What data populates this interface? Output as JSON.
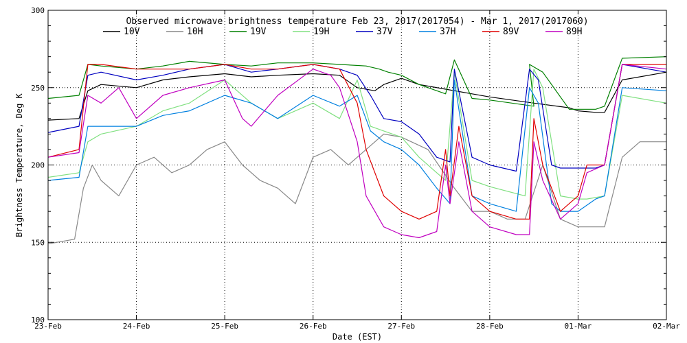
{
  "chart_data": {
    "type": "line",
    "title": "Observed microwave brightness temperature Feb 23, 2017(2017054) - Mar  1, 2017(2017060)",
    "xlabel": "Date (EST)",
    "ylabel": "Brightness Temperature, Deg K",
    "ylim": [
      100,
      300
    ],
    "xlim": [
      0,
      7
    ],
    "grid": true,
    "legend_position": "top",
    "x_tick_labels": [
      "23-Feb",
      "24-Feb",
      "25-Feb",
      "26-Feb",
      "27-Feb",
      "28-Feb",
      "01-Mar",
      "02-Mar"
    ],
    "y_tick_labels": [
      "100",
      "150",
      "200",
      "250",
      "300"
    ],
    "series": [
      {
        "name": "10V",
        "color": "#000000",
        "x": [
          0,
          0.35,
          0.45,
          0.6,
          1.0,
          1.3,
          1.6,
          2.0,
          2.3,
          2.6,
          3.0,
          3.3,
          3.5,
          3.7,
          3.8,
          4.0,
          4.2,
          4.5,
          4.8,
          5.0,
          5.5,
          5.9,
          6.0,
          6.2,
          6.3,
          6.5,
          7.0
        ],
        "y": [
          229,
          230,
          248,
          252,
          250,
          255,
          257,
          259,
          257,
          258,
          259,
          258,
          250,
          248,
          252,
          256,
          252,
          249,
          246,
          244,
          240,
          237,
          235,
          234,
          234,
          255,
          260
        ]
      },
      {
        "name": "10H",
        "color": "#888888",
        "x": [
          0,
          0.3,
          0.4,
          0.5,
          0.6,
          0.8,
          1.0,
          1.2,
          1.4,
          1.6,
          1.8,
          2.0,
          2.2,
          2.4,
          2.6,
          2.8,
          3.0,
          3.2,
          3.4,
          3.6,
          3.8,
          4.0,
          4.3,
          4.6,
          4.8,
          5.0,
          5.2,
          5.4,
          5.6,
          5.8,
          6.0,
          6.1,
          6.2,
          6.3,
          6.5,
          6.7,
          7.0
        ],
        "y": [
          149,
          152,
          185,
          200,
          190,
          180,
          200,
          205,
          195,
          200,
          210,
          215,
          200,
          190,
          185,
          175,
          205,
          210,
          200,
          210,
          220,
          218,
          210,
          185,
          170,
          170,
          165,
          165,
          200,
          165,
          160,
          160,
          160,
          160,
          205,
          215,
          215
        ]
      },
      {
        "name": "19V",
        "color": "#008000",
        "x": [
          0,
          0.35,
          0.45,
          0.6,
          1.0,
          1.3,
          1.6,
          2.0,
          2.3,
          2.6,
          3.0,
          3.3,
          3.6,
          3.75,
          3.85,
          4.0,
          4.2,
          4.5,
          4.6,
          4.8,
          5.0,
          5.5,
          5.45,
          5.6,
          5.9,
          6.0,
          6.2,
          6.3,
          6.5,
          7.0
        ],
        "y": [
          243,
          245,
          265,
          264,
          262,
          264,
          267,
          265,
          264,
          266,
          266,
          265,
          264,
          262,
          260,
          258,
          252,
          246,
          268,
          243,
          242,
          238,
          265,
          260,
          236,
          236,
          236,
          238,
          269,
          270
        ]
      },
      {
        "name": "19H",
        "color": "#80e080",
        "x": [
          0,
          0.35,
          0.45,
          0.6,
          1.0,
          1.3,
          1.6,
          2.0,
          2.3,
          2.6,
          3.0,
          3.3,
          3.5,
          3.65,
          3.8,
          4.0,
          4.2,
          4.4,
          4.5,
          4.6,
          4.8,
          5.0,
          5.4,
          5.5,
          5.6,
          5.8,
          6.0,
          6.1,
          6.3,
          6.5,
          7.0
        ],
        "y": [
          192,
          195,
          215,
          220,
          225,
          235,
          240,
          255,
          240,
          230,
          240,
          230,
          255,
          225,
          222,
          218,
          205,
          195,
          190,
          260,
          190,
          186,
          180,
          262,
          250,
          180,
          178,
          178,
          180,
          245,
          240
        ]
      },
      {
        "name": "37V",
        "color": "#0000c0",
        "x": [
          0,
          0.35,
          0.45,
          0.6,
          1.0,
          1.3,
          1.6,
          2.0,
          2.3,
          2.6,
          3.0,
          3.3,
          3.5,
          3.65,
          3.8,
          4.0,
          4.2,
          4.4,
          4.55,
          4.6,
          4.8,
          5.0,
          5.3,
          5.45,
          5.55,
          5.7,
          5.8,
          6.0,
          6.2,
          6.3,
          6.5,
          7.0
        ],
        "y": [
          221,
          225,
          258,
          260,
          255,
          258,
          262,
          265,
          260,
          262,
          265,
          262,
          258,
          245,
          230,
          228,
          220,
          205,
          202,
          262,
          205,
          200,
          196,
          262,
          255,
          200,
          198,
          198,
          198,
          200,
          265,
          260
        ]
      },
      {
        "name": "37H",
        "color": "#0080e0",
        "x": [
          0,
          0.35,
          0.45,
          0.6,
          1.0,
          1.3,
          1.6,
          2.0,
          2.3,
          2.6,
          3.0,
          3.3,
          3.5,
          3.65,
          3.8,
          4.0,
          4.2,
          4.4,
          4.55,
          4.6,
          4.8,
          5.0,
          5.3,
          5.45,
          5.55,
          5.7,
          5.8,
          6.0,
          6.2,
          6.3,
          6.5,
          7.0
        ],
        "y": [
          190,
          192,
          225,
          225,
          225,
          232,
          235,
          245,
          240,
          230,
          245,
          238,
          245,
          222,
          215,
          210,
          200,
          185,
          175,
          255,
          180,
          175,
          170,
          250,
          240,
          175,
          170,
          170,
          178,
          180,
          250,
          248
        ]
      },
      {
        "name": "89V",
        "color": "#e00000",
        "x": [
          0,
          0.35,
          0.45,
          0.6,
          1.0,
          1.3,
          1.6,
          2.0,
          2.3,
          2.6,
          3.0,
          3.3,
          3.5,
          3.6,
          3.7,
          3.8,
          4.0,
          4.2,
          4.4,
          4.5,
          4.55,
          4.65,
          4.8,
          5.0,
          5.3,
          5.45,
          5.5,
          5.6,
          5.8,
          6.0,
          6.1,
          6.3,
          6.5,
          7.0
        ],
        "y": [
          205,
          210,
          265,
          265,
          262,
          262,
          262,
          265,
          262,
          262,
          265,
          262,
          240,
          210,
          195,
          180,
          170,
          165,
          170,
          210,
          180,
          225,
          180,
          170,
          165,
          165,
          230,
          200,
          170,
          180,
          200,
          200,
          265,
          265
        ]
      },
      {
        "name": "89H",
        "color": "#c000c0",
        "x": [
          0,
          0.35,
          0.45,
          0.6,
          0.8,
          1.0,
          1.3,
          1.6,
          2.0,
          2.2,
          2.3,
          2.6,
          3.0,
          3.2,
          3.3,
          3.5,
          3.6,
          3.7,
          3.8,
          4.0,
          4.2,
          4.4,
          4.5,
          4.55,
          4.65,
          4.8,
          5.0,
          5.3,
          5.45,
          5.5,
          5.6,
          5.8,
          6.0,
          6.1,
          6.3,
          6.5,
          7.0
        ],
        "y": [
          205,
          208,
          245,
          240,
          250,
          230,
          245,
          250,
          255,
          230,
          225,
          245,
          262,
          258,
          250,
          215,
          180,
          170,
          160,
          155,
          153,
          157,
          200,
          175,
          215,
          170,
          160,
          155,
          155,
          215,
          190,
          165,
          175,
          195,
          200,
          265,
          262
        ]
      }
    ]
  }
}
